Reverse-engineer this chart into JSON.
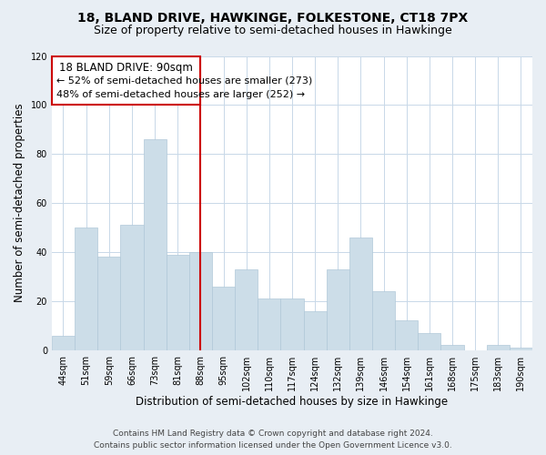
{
  "title": "18, BLAND DRIVE, HAWKINGE, FOLKESTONE, CT18 7PX",
  "subtitle": "Size of property relative to semi-detached houses in Hawkinge",
  "xlabel": "Distribution of semi-detached houses by size in Hawkinge",
  "ylabel": "Number of semi-detached properties",
  "categories": [
    "44sqm",
    "51sqm",
    "59sqm",
    "66sqm",
    "73sqm",
    "81sqm",
    "88sqm",
    "95sqm",
    "102sqm",
    "110sqm",
    "117sqm",
    "124sqm",
    "132sqm",
    "139sqm",
    "146sqm",
    "154sqm",
    "161sqm",
    "168sqm",
    "175sqm",
    "183sqm",
    "190sqm"
  ],
  "values": [
    6,
    50,
    38,
    51,
    86,
    39,
    40,
    26,
    33,
    21,
    21,
    16,
    33,
    46,
    24,
    12,
    7,
    2,
    0,
    2,
    1
  ],
  "bar_color": "#ccdde8",
  "bar_edge_color": "#b0c8d8",
  "vline_index": 6,
  "vline_color": "#cc0000",
  "vline_label": "18 BLAND DRIVE: 90sqm",
  "annotation_smaller": "← 52% of semi-detached houses are smaller (273)",
  "annotation_larger": "48% of semi-detached houses are larger (252) →",
  "box_edge_color": "#cc0000",
  "ylim": [
    0,
    120
  ],
  "yticks": [
    0,
    20,
    40,
    60,
    80,
    100,
    120
  ],
  "background_color": "#e8eef4",
  "plot_bg_color": "#ffffff",
  "grid_color": "#c8d8e8",
  "footer_line1": "Contains HM Land Registry data © Crown copyright and database right 2024.",
  "footer_line2": "Contains public sector information licensed under the Open Government Licence v3.0.",
  "title_fontsize": 10,
  "subtitle_fontsize": 9,
  "axis_label_fontsize": 8.5,
  "tick_fontsize": 7,
  "annotation_title_fontsize": 8.5,
  "annotation_text_fontsize": 8,
  "footer_fontsize": 6.5
}
